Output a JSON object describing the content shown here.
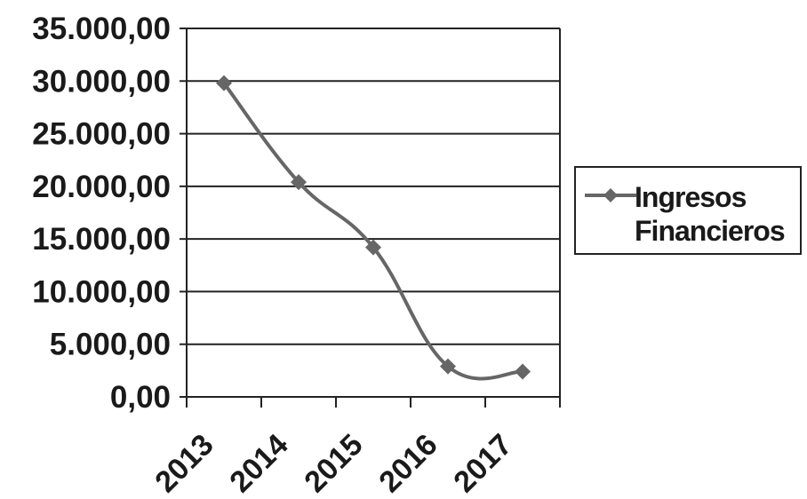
{
  "chart_data": {
    "type": "line",
    "title": "",
    "xlabel": "",
    "ylabel": "",
    "categories": [
      "2013",
      "2014",
      "2015",
      "2016",
      "2017"
    ],
    "series": [
      {
        "name": "Ingresos Financieros",
        "values": [
          29800,
          20400,
          14200,
          2900,
          2400
        ],
        "color": "#666666"
      }
    ],
    "ylim": [
      0,
      35000
    ],
    "yticks": [
      "0,00",
      "5.000,00",
      "10.000,00",
      "15.000,00",
      "20.000,00",
      "25.000,00",
      "30.000,00",
      "35.000,00"
    ],
    "grid": true,
    "legend_position": "right",
    "smoothed": true
  }
}
